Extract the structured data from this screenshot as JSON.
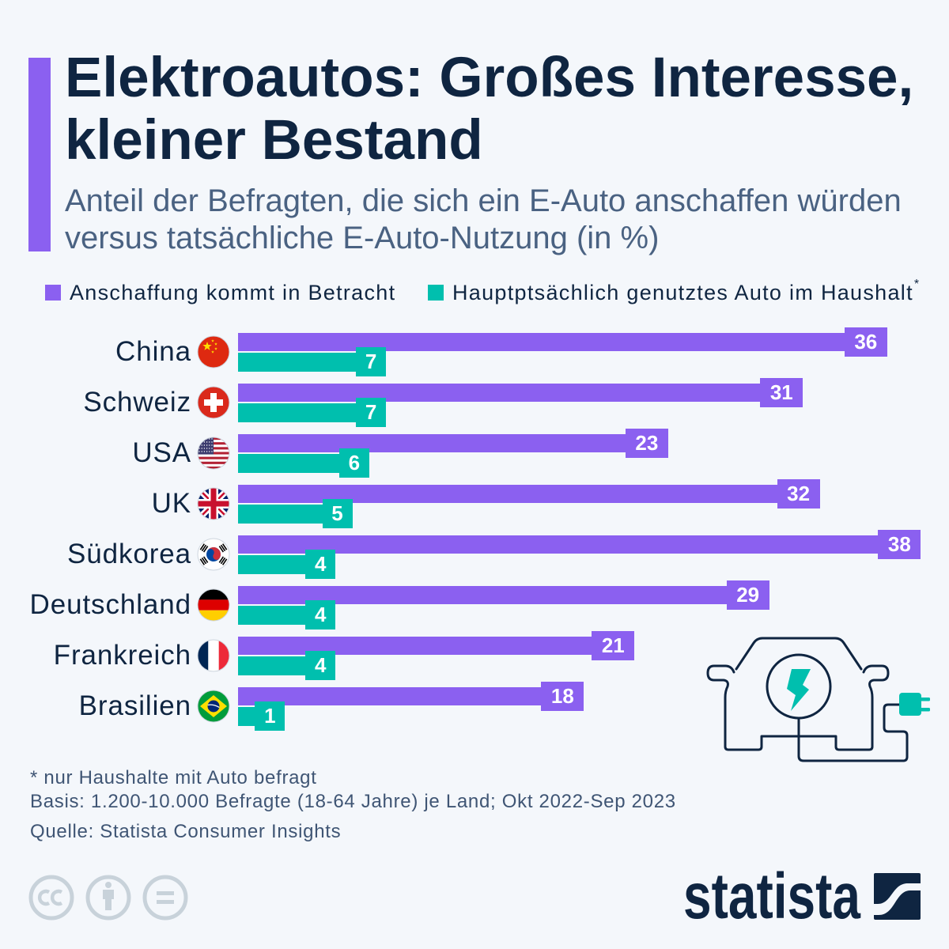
{
  "header": {
    "title_lines": [
      "Elektroautos: Großes Interesse,",
      "kleiner Bestand"
    ],
    "subtitle_lines": [
      "Anteil der Befragten, die sich ein E-Auto anschaffen würden",
      "versus tatsächliche E-Auto-Nutzung (in %)"
    ]
  },
  "colors": {
    "accent": "#8B60F0",
    "title": "#0F2541",
    "background": "#F4F7FB"
  },
  "chart_data": {
    "type": "bar",
    "orientation": "horizontal",
    "title": "Elektroautos: Großes Interesse, kleiner Bestand",
    "subtitle": "Anteil der Befragten, die sich ein E-Auto anschaffen würden versus tatsächliche E-Auto-Nutzung (in %)",
    "xlabel": "",
    "ylabel": "",
    "unit": "%",
    "grid": false,
    "value_axis_visible": false,
    "data_labels": true,
    "legend": "top-left",
    "categories": [
      "China",
      "Schweiz",
      "USA",
      "UK",
      "Südkorea",
      "Deutschland",
      "Frankreich",
      "Brasilien"
    ],
    "category_icons": [
      "flag-china",
      "flag-switzerland",
      "flag-usa",
      "flag-uk",
      "flag-south-korea",
      "flag-germany",
      "flag-france",
      "flag-brazil"
    ],
    "series": [
      {
        "name": "Anschaffung kommt in Betracht",
        "footnote_marker": "",
        "color": "#8B60F0",
        "values": [
          36,
          31,
          23,
          32,
          38,
          29,
          21,
          18
        ]
      },
      {
        "name": "Hauptptsächlich genutztes Auto im Haushalt",
        "footnote_marker": "*",
        "color": "#00BFAE",
        "values": [
          7,
          7,
          6,
          5,
          4,
          4,
          4,
          1
        ]
      }
    ]
  },
  "illustration": {
    "icon": "electric-car-charging-icon",
    "line_color": "#0F2541",
    "accent_color": "#00BFAE"
  },
  "footer": {
    "note": "* nur Haushalte mit Auto befragt",
    "basis": "Basis: 1.200-10.000 Befragte (18-64 Jahre) je Land; Okt 2022-Sep 2023",
    "source": "Quelle: Statista Consumer Insights"
  },
  "branding": {
    "logo_text": "statista",
    "license_icons": [
      "creative-commons-icon",
      "attribution-icon",
      "no-derivatives-icon"
    ]
  }
}
